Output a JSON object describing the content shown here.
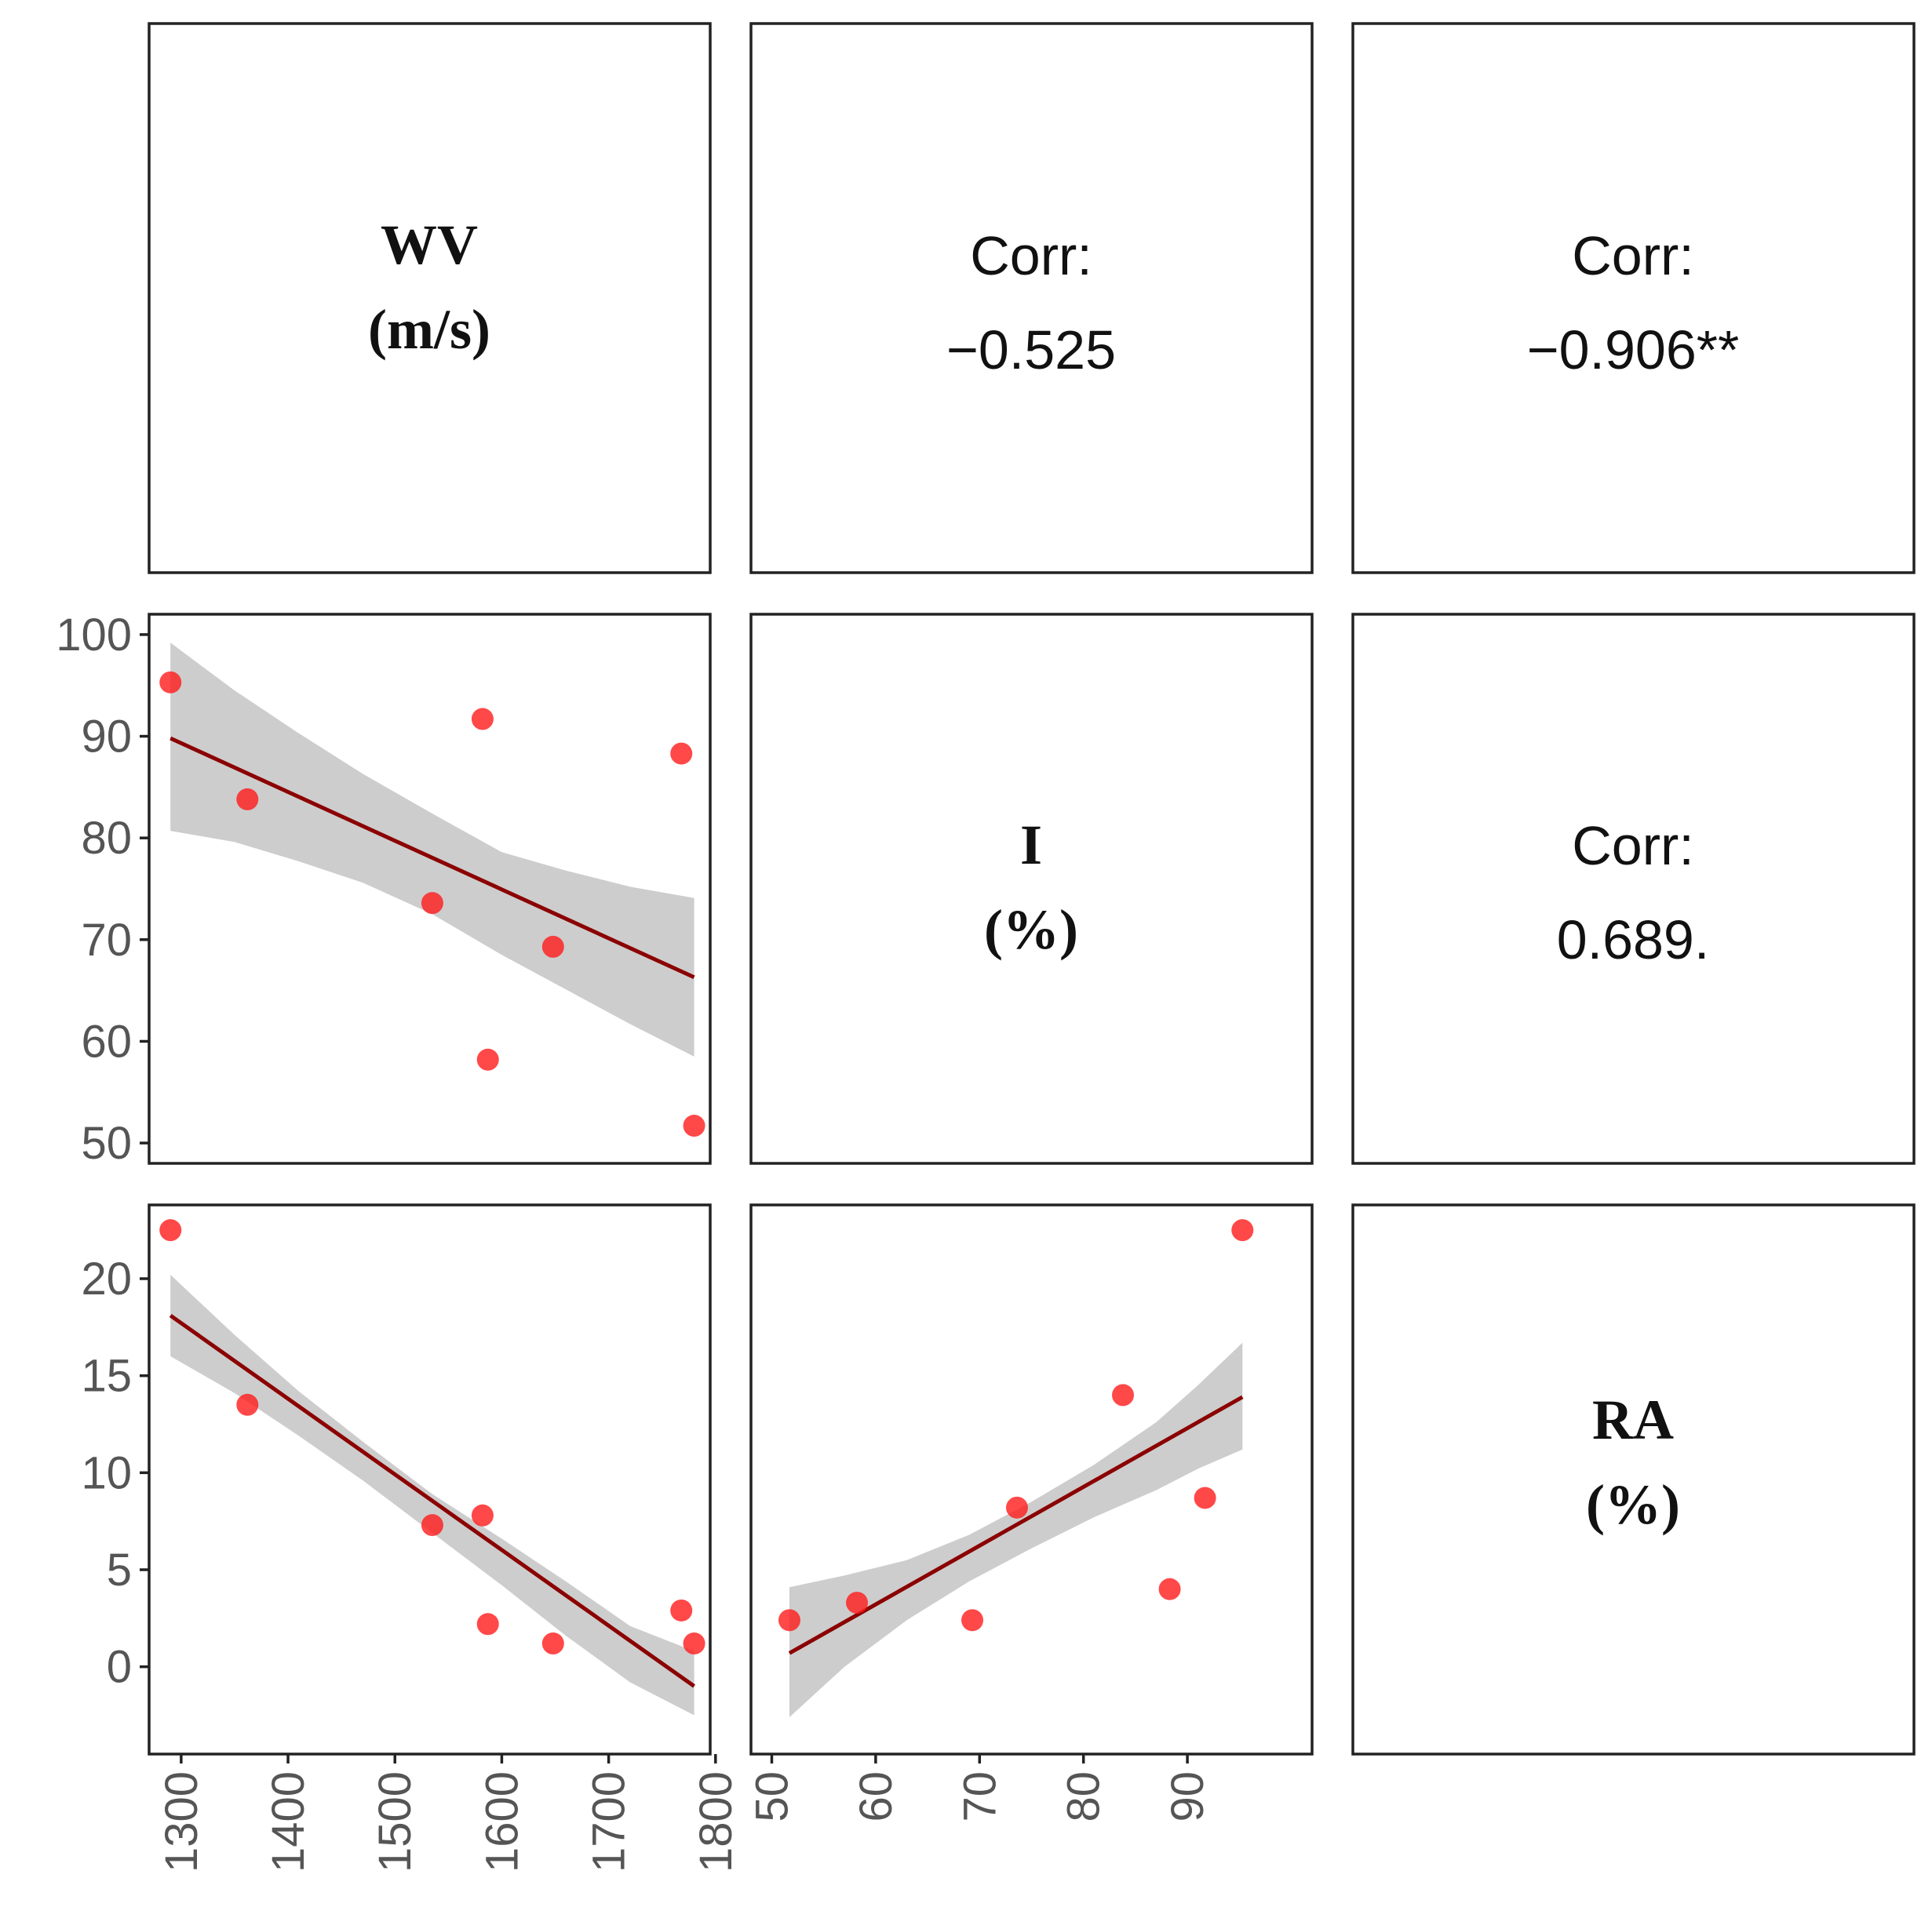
{
  "chart_data": {
    "type": "scatter",
    "variables": [
      {
        "name": "WV",
        "unit": "(m/s)"
      },
      {
        "name": "I",
        "unit": "(%)"
      },
      {
        "name": "RA",
        "unit": "(%)"
      }
    ],
    "correlations": [
      {
        "pair": [
          "WV",
          "I"
        ],
        "label": "Corr:",
        "value": "−0.525"
      },
      {
        "pair": [
          "WV",
          "RA"
        ],
        "label": "Corr:",
        "value": "−0.906**"
      },
      {
        "pair": [
          "I",
          "RA"
        ],
        "label": "Corr:",
        "value": "0.689."
      }
    ],
    "axes": {
      "WV": {
        "range": [
          1270,
          1795
        ],
        "ticks": [
          "1300",
          "1400",
          "1500",
          "1600",
          "1700",
          "1800"
        ]
      },
      "I": {
        "range": [
          48,
          102
        ],
        "ticks": [
          "50",
          "60",
          "70",
          "80",
          "90",
          "100"
        ]
      },
      "RA": {
        "range": [
          -4.5,
          23.8
        ],
        "ticks": [
          "0",
          "5",
          "10",
          "15",
          "20"
        ]
      },
      "I_x_ticks": [
        "50",
        "60",
        "70",
        "80",
        "90"
      ]
    },
    "grid": false,
    "scatter_panels": [
      {
        "x": "WV",
        "y": "I",
        "points": [
          [
            1290,
            95.3
          ],
          [
            1362,
            83.8
          ],
          [
            1535,
            73.6
          ],
          [
            1582,
            91.7
          ],
          [
            1587,
            58.2
          ],
          [
            1648,
            69.3
          ],
          [
            1768,
            88.3
          ],
          [
            1780,
            51.7
          ]
        ],
        "fit": {
          "x": [
            1290,
            1780
          ],
          "y": [
            89.8,
            66.3
          ]
        },
        "band": {
          "x": [
            1290,
            1350,
            1410,
            1470,
            1535,
            1600,
            1660,
            1720,
            1780
          ],
          "lower": [
            80.7,
            79.6,
            77.7,
            75.6,
            72.5,
            68.5,
            65.1,
            61.7,
            58.5
          ],
          "upper": [
            99.2,
            94.5,
            90.3,
            86.3,
            82.4,
            78.6,
            76.8,
            75.2,
            74.1
          ]
        }
      },
      {
        "x": "WV",
        "y": "RA",
        "points": [
          [
            1290,
            22.5
          ],
          [
            1362,
            13.5
          ],
          [
            1535,
            7.3
          ],
          [
            1582,
            7.8
          ],
          [
            1587,
            2.2
          ],
          [
            1648,
            1.2
          ],
          [
            1768,
            2.9
          ],
          [
            1780,
            1.2
          ]
        ],
        "fit": {
          "x": [
            1290,
            1780
          ],
          "y": [
            18.1,
            -1.0
          ]
        },
        "band": {
          "x": [
            1290,
            1350,
            1410,
            1470,
            1535,
            1600,
            1660,
            1720,
            1780
          ],
          "lower": [
            16.0,
            14.1,
            11.9,
            9.6,
            6.9,
            4.2,
            1.6,
            -0.8,
            -2.5
          ],
          "upper": [
            20.2,
            17.1,
            14.2,
            11.6,
            8.9,
            6.6,
            4.4,
            2.1,
            0.8
          ]
        }
      },
      {
        "x": "I",
        "y": "RA",
        "points": [
          [
            51.7,
            2.4
          ],
          [
            58.2,
            3.3
          ],
          [
            69.3,
            2.4
          ],
          [
            73.6,
            8.2
          ],
          [
            83.8,
            14.0
          ],
          [
            88.3,
            4.0
          ],
          [
            91.7,
            8.7
          ],
          [
            95.3,
            22.5
          ]
        ],
        "fit": {
          "x": [
            51.7,
            95.3
          ],
          "y": [
            0.7,
            13.9
          ]
        },
        "band": {
          "x": [
            51.7,
            57,
            63,
            69,
            75,
            81,
            87,
            91,
            95.3
          ],
          "lower": [
            -2.6,
            0.0,
            2.4,
            4.4,
            6.1,
            7.7,
            9.1,
            10.2,
            11.2
          ],
          "upper": [
            4.1,
            4.7,
            5.5,
            6.8,
            8.5,
            10.4,
            12.6,
            14.5,
            16.7
          ]
        }
      }
    ]
  }
}
